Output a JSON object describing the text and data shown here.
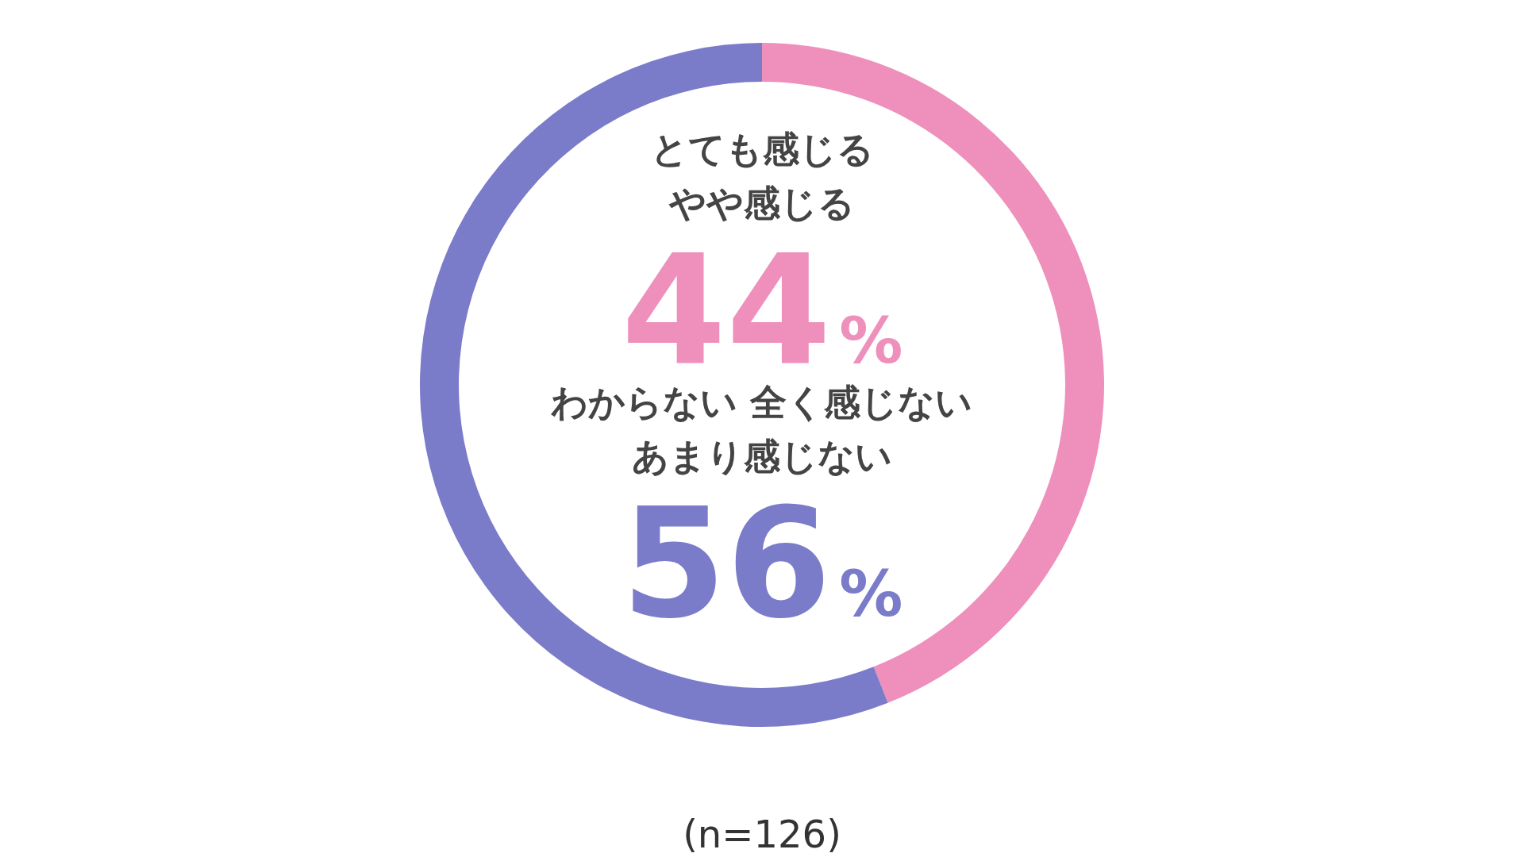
{
  "chart_data": {
    "type": "donut",
    "categories": [
      "とても感じるやや感じる",
      "わからない 全く感じないあまり感じない"
    ],
    "values": [
      44,
      56
    ],
    "colors": [
      "#ee90bb",
      "#7a7cca"
    ],
    "value_labels": [
      "44%",
      "56%"
    ],
    "annotations": [
      "(n=126)"
    ]
  }
}
